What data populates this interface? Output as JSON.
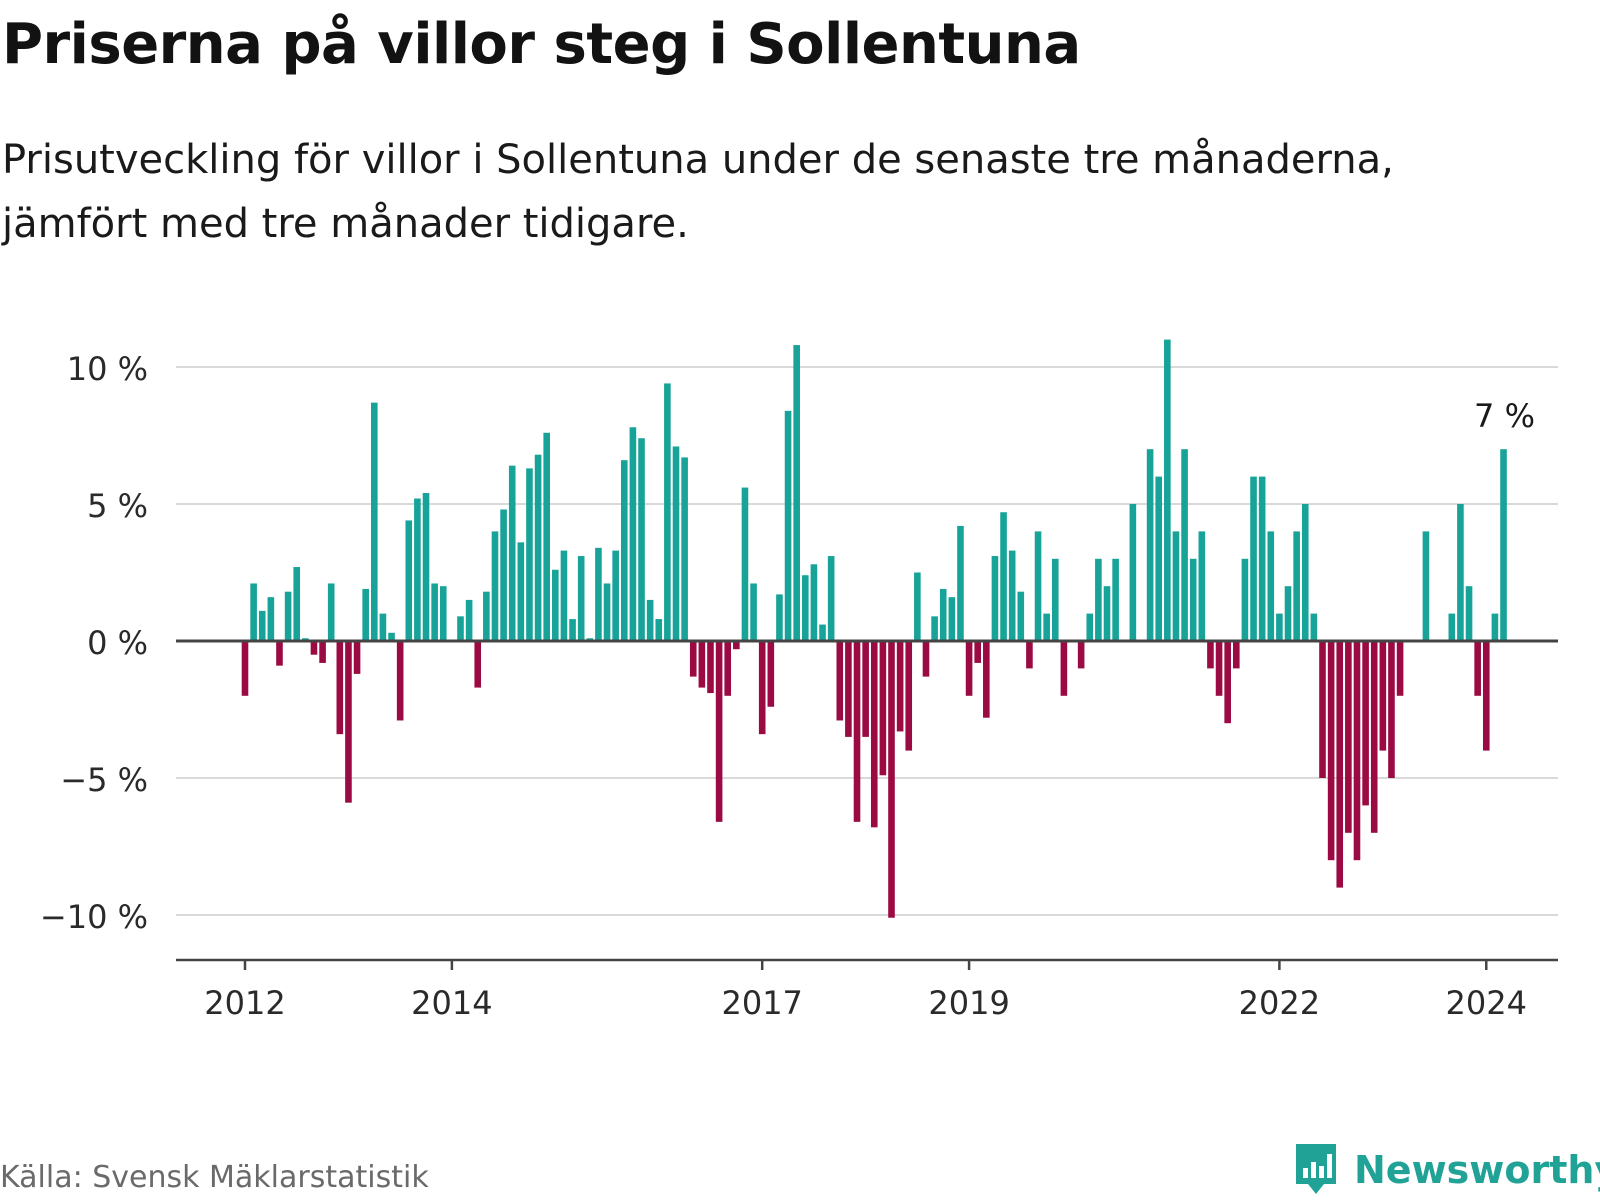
{
  "title": "Priserna på villor steg i Sollentuna",
  "subtitle_lines": [
    "Prisutveckling för villor i Sollentuna under de senaste tre månaderna,",
    "jämfört med tre månader tidigare."
  ],
  "source": "Källa: Svensk Mäklarstatistik",
  "brand": {
    "name": "Newsworthy",
    "icon": "newsworthy-logo-icon"
  },
  "colors": {
    "positive": "#17a398",
    "negative": "#9b0a42",
    "grid": "#d9d9d9",
    "axis": "#444444",
    "brand": "#21a296"
  },
  "chart_data": {
    "type": "bar",
    "unit": "%",
    "ylabel": "",
    "xlabel": "",
    "ylim": [
      -11,
      11
    ],
    "y_ticks": [
      {
        "value": 10,
        "label": "10 %"
      },
      {
        "value": 5,
        "label": "5 %"
      },
      {
        "value": 0,
        "label": "0 %"
      },
      {
        "value": -5,
        "label": "−5 %"
      },
      {
        "value": -10,
        "label": "−10 %"
      }
    ],
    "start": {
      "year": 2011,
      "month": 10
    },
    "x_ticks": [
      {
        "index": 0,
        "label": "2012"
      },
      {
        "index": 24,
        "label": "2014"
      },
      {
        "index": 60,
        "label": "2017"
      },
      {
        "index": 84,
        "label": "2019"
      },
      {
        "index": 120,
        "label": "2022"
      },
      {
        "index": 144,
        "label": "2024"
      }
    ],
    "values": [
      -2,
      2.1,
      1.1,
      1.6,
      -0.9,
      1.8,
      2.7,
      0.1,
      -0.5,
      -0.8,
      2.1,
      -3.4,
      -5.9,
      -1.2,
      1.9,
      8.7,
      1,
      0.3,
      -2.9,
      4.4,
      5.2,
      5.4,
      2.1,
      2,
      0,
      0.9,
      1.5,
      -1.7,
      1.8,
      4,
      4.8,
      6.4,
      3.6,
      6.3,
      6.8,
      7.6,
      2.6,
      3.3,
      0.8,
      3.1,
      0.1,
      3.4,
      2.1,
      3.3,
      6.6,
      7.8,
      7.4,
      1.5,
      0.8,
      9.4,
      7.1,
      6.7,
      -1.3,
      -1.7,
      -1.9,
      -6.6,
      -2,
      -0.3,
      5.6,
      2.1,
      -3.4,
      -2.4,
      1.7,
      8.4,
      10.8,
      2.4,
      2.8,
      0.6,
      3.1,
      -2.9,
      -3.5,
      -6.6,
      -3.5,
      -6.8,
      -4.9,
      -10.1,
      -3.3,
      -4,
      2.5,
      -1.3,
      0.9,
      1.9,
      1.6,
      4.2,
      -2,
      -0.8,
      -2.8,
      3.1,
      4.7,
      3.3,
      1.8,
      -1,
      4,
      1,
      3,
      -2,
      0,
      -1,
      1,
      3,
      2,
      3,
      0,
      5,
      0,
      7,
      6,
      11,
      4,
      7,
      3,
      4,
      -1,
      -2,
      -3,
      -1,
      3,
      6,
      6,
      4,
      1,
      2,
      4,
      5,
      1,
      -5,
      -8,
      -9,
      -7,
      -8,
      -6,
      -7,
      -4,
      -5,
      -2,
      0,
      0,
      4,
      0,
      0,
      1,
      5,
      2,
      -2,
      -4,
      1,
      7
    ],
    "annotations": [
      {
        "index": 146,
        "label": "7 %"
      }
    ]
  }
}
